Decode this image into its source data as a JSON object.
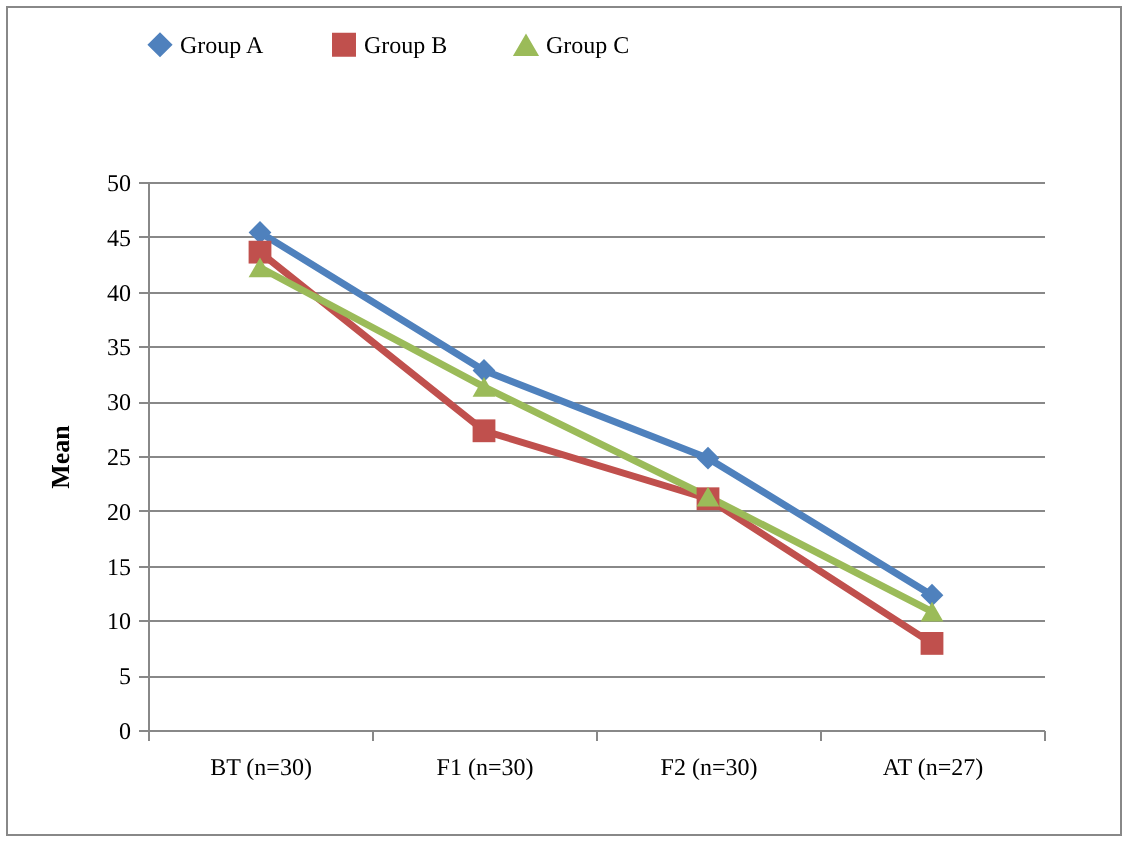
{
  "chart_data": {
    "type": "line",
    "ylabel": "Mean",
    "categories": [
      "BT (n=30)",
      "F1 (n=30)",
      "F2 (n=30)",
      "AT (n=27)"
    ],
    "series": [
      {
        "name": "Group A",
        "color": "#4f81bd",
        "marker": "diamond",
        "values": [
          45.4,
          32.8,
          24.8,
          12.3
        ]
      },
      {
        "name": "Group B",
        "color": "#c0504d",
        "marker": "square",
        "values": [
          43.6,
          27.3,
          21.1,
          7.9
        ]
      },
      {
        "name": "Group C",
        "color": "#9bbb59",
        "marker": "triangle",
        "values": [
          42.2,
          31.3,
          21.3,
          10.8
        ]
      }
    ],
    "ylim": [
      0,
      50
    ],
    "yticks": [
      0,
      5,
      10,
      15,
      20,
      25,
      30,
      35,
      40,
      45,
      50
    ],
    "grid": "y",
    "legend": "top"
  }
}
